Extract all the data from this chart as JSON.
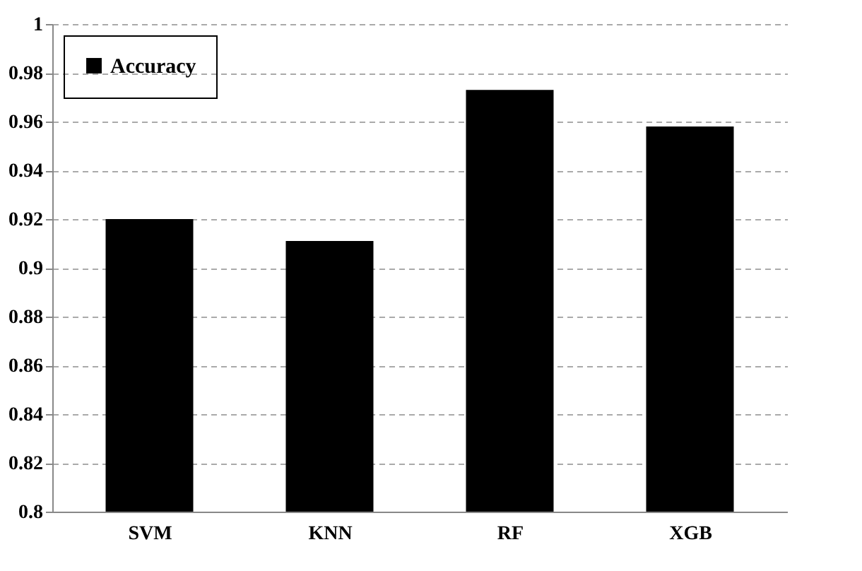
{
  "chart_data": {
    "type": "bar",
    "categories": [
      "SVM",
      "KNN",
      "RF",
      "XGB"
    ],
    "series": [
      {
        "name": "Accuracy",
        "color": "#000000",
        "values": [
          0.92,
          0.911,
          0.973,
          0.958
        ]
      }
    ],
    "ylim": [
      0.8,
      1
    ],
    "yticks": [
      0.8,
      0.82,
      0.84,
      0.86,
      0.88,
      0.9,
      0.92,
      0.94,
      0.96,
      0.98,
      1
    ],
    "grid": "y",
    "legend": "top left"
  }
}
